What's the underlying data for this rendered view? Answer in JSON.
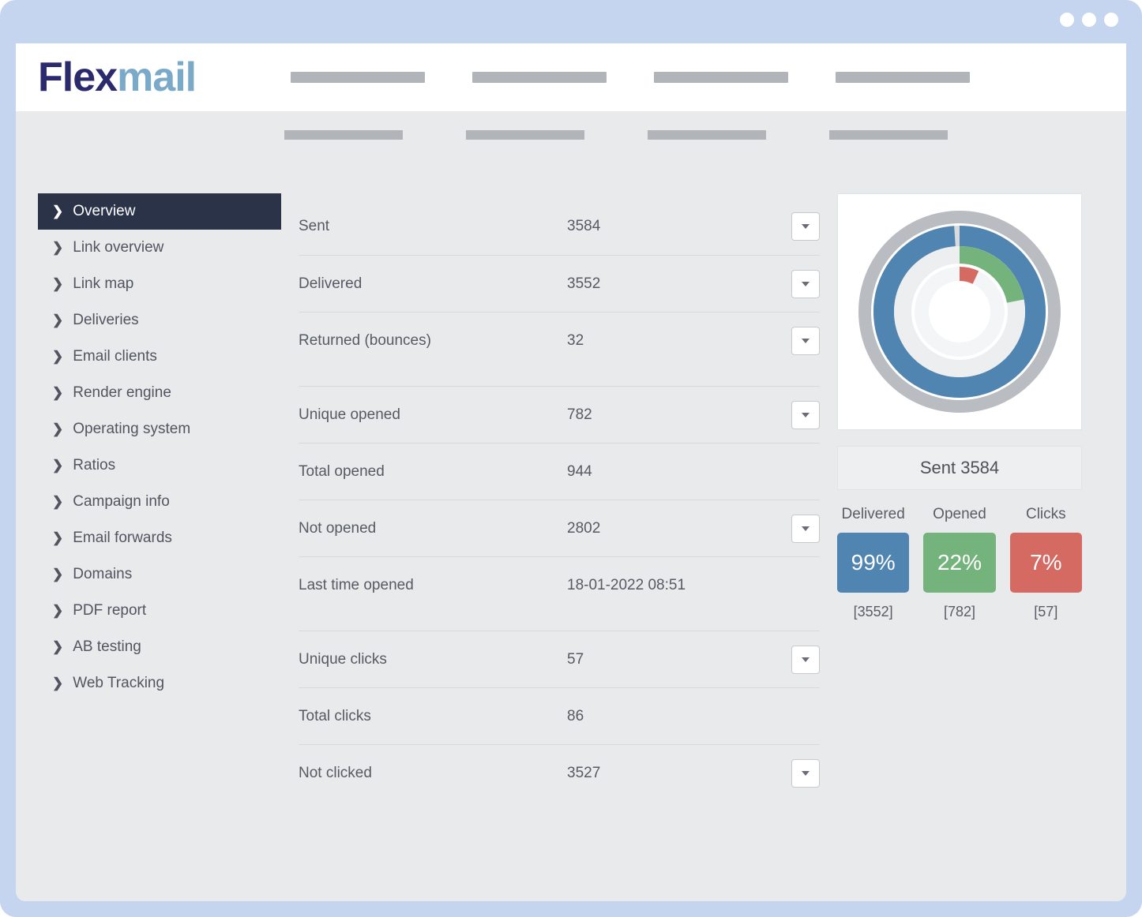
{
  "brand": {
    "name_part1": "Flex",
    "name_part2": "mail",
    "color_primary": "#2c2a6f",
    "color_accent": "#7aa9c9"
  },
  "layout": {
    "frame_bg": "#c5d4ef",
    "app_bg": "#e8eaec",
    "topbar_bg": "#ffffff",
    "placeholder_bar_color": "#b1b4b9",
    "divider_color": "#d7d9db",
    "text_color": "#565a63",
    "sidebar_active_bg": "#2a3347",
    "sidebar_active_text": "#ffffff"
  },
  "sidebar": {
    "items": [
      {
        "label": "Overview",
        "active": true
      },
      {
        "label": "Link overview",
        "active": false
      },
      {
        "label": "Link map",
        "active": false
      },
      {
        "label": "Deliveries",
        "active": false
      },
      {
        "label": "Email clients",
        "active": false
      },
      {
        "label": "Render engine",
        "active": false
      },
      {
        "label": "Operating system",
        "active": false
      },
      {
        "label": "Ratios",
        "active": false
      },
      {
        "label": "Campaign info",
        "active": false
      },
      {
        "label": "Email forwards",
        "active": false
      },
      {
        "label": "Domains",
        "active": false
      },
      {
        "label": "PDF report",
        "active": false
      },
      {
        "label": "AB testing",
        "active": false
      },
      {
        "label": "Web Tracking",
        "active": false
      }
    ]
  },
  "stats": {
    "groups": [
      [
        {
          "label": "Sent",
          "value": "3584",
          "dropdown": true
        },
        {
          "label": "Delivered",
          "value": "3552",
          "dropdown": true
        },
        {
          "label": "Returned (bounces)",
          "value": "32",
          "dropdown": true
        }
      ],
      [
        {
          "label": "Unique opened",
          "value": "782",
          "dropdown": true
        },
        {
          "label": "Total opened",
          "value": "944",
          "dropdown": false
        },
        {
          "label": "Not opened",
          "value": "2802",
          "dropdown": true
        },
        {
          "label": "Last time opened",
          "value": "18-01-2022 08:51",
          "dropdown": false
        }
      ],
      [
        {
          "label": "Unique clicks",
          "value": "57",
          "dropdown": true
        },
        {
          "label": "Total clicks",
          "value": "86",
          "dropdown": false
        },
        {
          "label": "Not clicked",
          "value": "3527",
          "dropdown": true
        }
      ]
    ]
  },
  "donut": {
    "outer_ring_color": "#b9bcc0",
    "rings": [
      {
        "color": "#5084b1",
        "fraction": 0.99,
        "empty_color": "#d8dadd"
      },
      {
        "color": "#74b37c",
        "fraction": 0.22,
        "empty_color": "#eceeef"
      },
      {
        "color": "#d46a61",
        "fraction": 0.07,
        "empty_color": "#f4f5f6"
      }
    ],
    "background": "#ffffff"
  },
  "summary": {
    "sent_label": "Sent 3584",
    "kpis": [
      {
        "label": "Delivered",
        "percent": "99%",
        "count": "[3552]",
        "color": "#5084b1"
      },
      {
        "label": "Opened",
        "percent": "22%",
        "count": "[782]",
        "color": "#74b37c"
      },
      {
        "label": "Clicks",
        "percent": "7%",
        "count": "[57]",
        "color": "#d46a61"
      }
    ]
  }
}
